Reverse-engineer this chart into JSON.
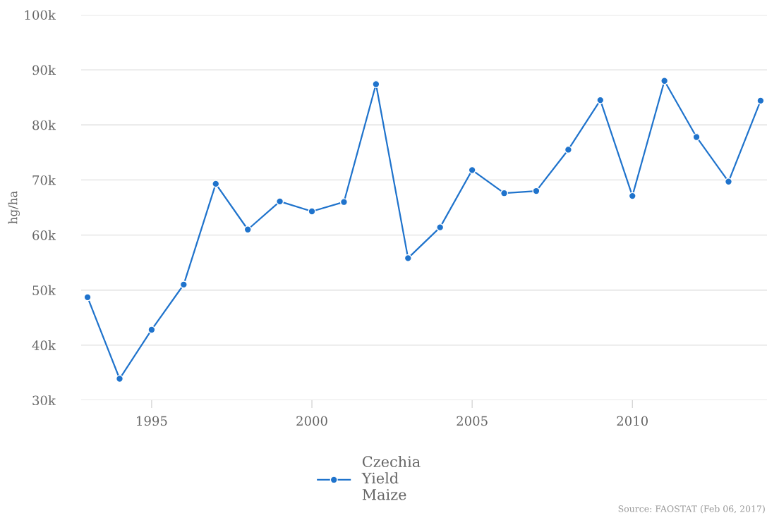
{
  "chart_data": {
    "type": "line",
    "ylabel": "hg/ha",
    "x": [
      1993,
      1994,
      1995,
      1996,
      1997,
      1998,
      1999,
      2000,
      2001,
      2002,
      2003,
      2004,
      2005,
      2006,
      2007,
      2008,
      2009,
      2010,
      2011,
      2012,
      2013,
      2014
    ],
    "series": [
      {
        "name": "Czechia\nYield\nMaize",
        "color": "#1f73cc",
        "values": [
          48700,
          33900,
          42800,
          51000,
          69300,
          61000,
          66100,
          64300,
          66000,
          87400,
          55800,
          61400,
          71800,
          67600,
          68000,
          75500,
          84500,
          67100,
          88000,
          77800,
          69700,
          84400
        ]
      }
    ],
    "xlim": [
      1992.8,
      2014.2
    ],
    "xticks": [
      1995,
      2000,
      2005,
      2010
    ],
    "ylim": [
      30000,
      100000
    ],
    "yticks": [
      {
        "value": 30000,
        "label": "30k"
      },
      {
        "value": 40000,
        "label": "40k"
      },
      {
        "value": 50000,
        "label": "50k"
      },
      {
        "value": 60000,
        "label": "60k"
      },
      {
        "value": 70000,
        "label": "70k"
      },
      {
        "value": 80000,
        "label": "80k"
      },
      {
        "value": 90000,
        "label": "90k"
      },
      {
        "value": 100000,
        "label": "100k"
      }
    ],
    "grid": "y",
    "legend": "bottom",
    "marker": "circle",
    "line_style": "solid",
    "annotations": [
      "Source: FAOSTAT (Feb 06, 2017)"
    ]
  }
}
